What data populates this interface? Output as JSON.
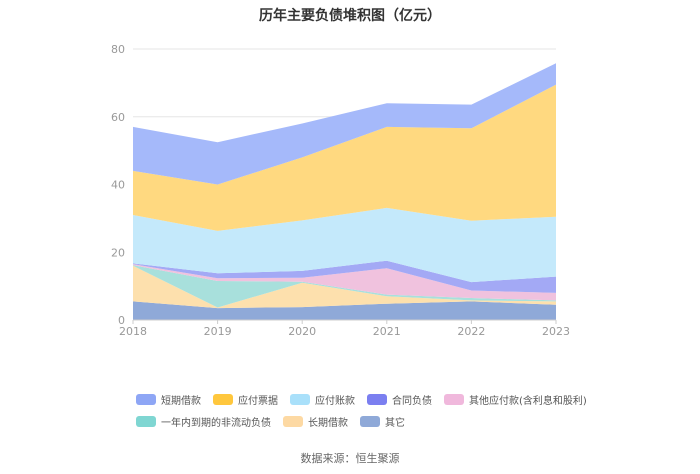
{
  "chart_data": {
    "type": "area",
    "title": "历年主要负债堆积图（亿元）",
    "x": [
      "2018",
      "2019",
      "2020",
      "2021",
      "2022",
      "2023"
    ],
    "ylim": [
      0,
      80
    ],
    "yticks": [
      0,
      20,
      40,
      60,
      80
    ],
    "stacked": true,
    "grid": true,
    "legend_position": "bottom",
    "series": [
      {
        "name": "其它",
        "color": "#8fa9d8",
        "values": [
          5.5,
          3.5,
          3.8,
          4.8,
          5.5,
          4.5
        ]
      },
      {
        "name": "长期借款",
        "color": "#fde0ad",
        "values": [
          10.5,
          0.2,
          7.2,
          2.2,
          0.3,
          1.0
        ]
      },
      {
        "name": "一年内到期的非流动负债",
        "color": "#a8e0dc",
        "values": [
          0.2,
          7.8,
          0.3,
          0.5,
          0.7,
          0.3
        ]
      },
      {
        "name": "其他应付款(含利息和股利)",
        "color": "#f0c2de",
        "values": [
          0.3,
          0.8,
          1.2,
          7.8,
          2.2,
          2.2
        ]
      },
      {
        "name": "合同负债",
        "color": "#a3a9f5",
        "values": [
          0.2,
          1.5,
          2.0,
          2.2,
          2.5,
          4.8
        ]
      },
      {
        "name": "应付账款",
        "color": "#c4e9fb",
        "values": [
          14.3,
          12.5,
          14.9,
          15.6,
          18.1,
          17.7
        ]
      },
      {
        "name": "应付票据",
        "color": "#ffd980",
        "values": [
          13.0,
          13.7,
          18.6,
          23.9,
          27.3,
          39.0
        ]
      },
      {
        "name": "短期借款",
        "color": "#a5b9fa",
        "values": [
          13.0,
          12.5,
          10.0,
          7.0,
          7.0,
          6.3
        ]
      }
    ]
  },
  "legend": {
    "row1": [
      {
        "label": "短期借款",
        "color": "#8ea6f5"
      },
      {
        "label": "应付票据",
        "color": "#ffc73d"
      },
      {
        "label": "应付账款",
        "color": "#a9e0fa"
      },
      {
        "label": "合同负债",
        "color": "#7b7ff0"
      },
      {
        "label": "其他应付款(含利息和股利)",
        "color": "#f0b8dc"
      }
    ],
    "row2": [
      {
        "label": "一年内到期的非流动负债",
        "color": "#7fd6d2"
      },
      {
        "label": "长期借款",
        "color": "#fdd9a3"
      },
      {
        "label": "其它",
        "color": "#8fa9d8"
      }
    ]
  },
  "source": "数据来源：恒生聚源"
}
